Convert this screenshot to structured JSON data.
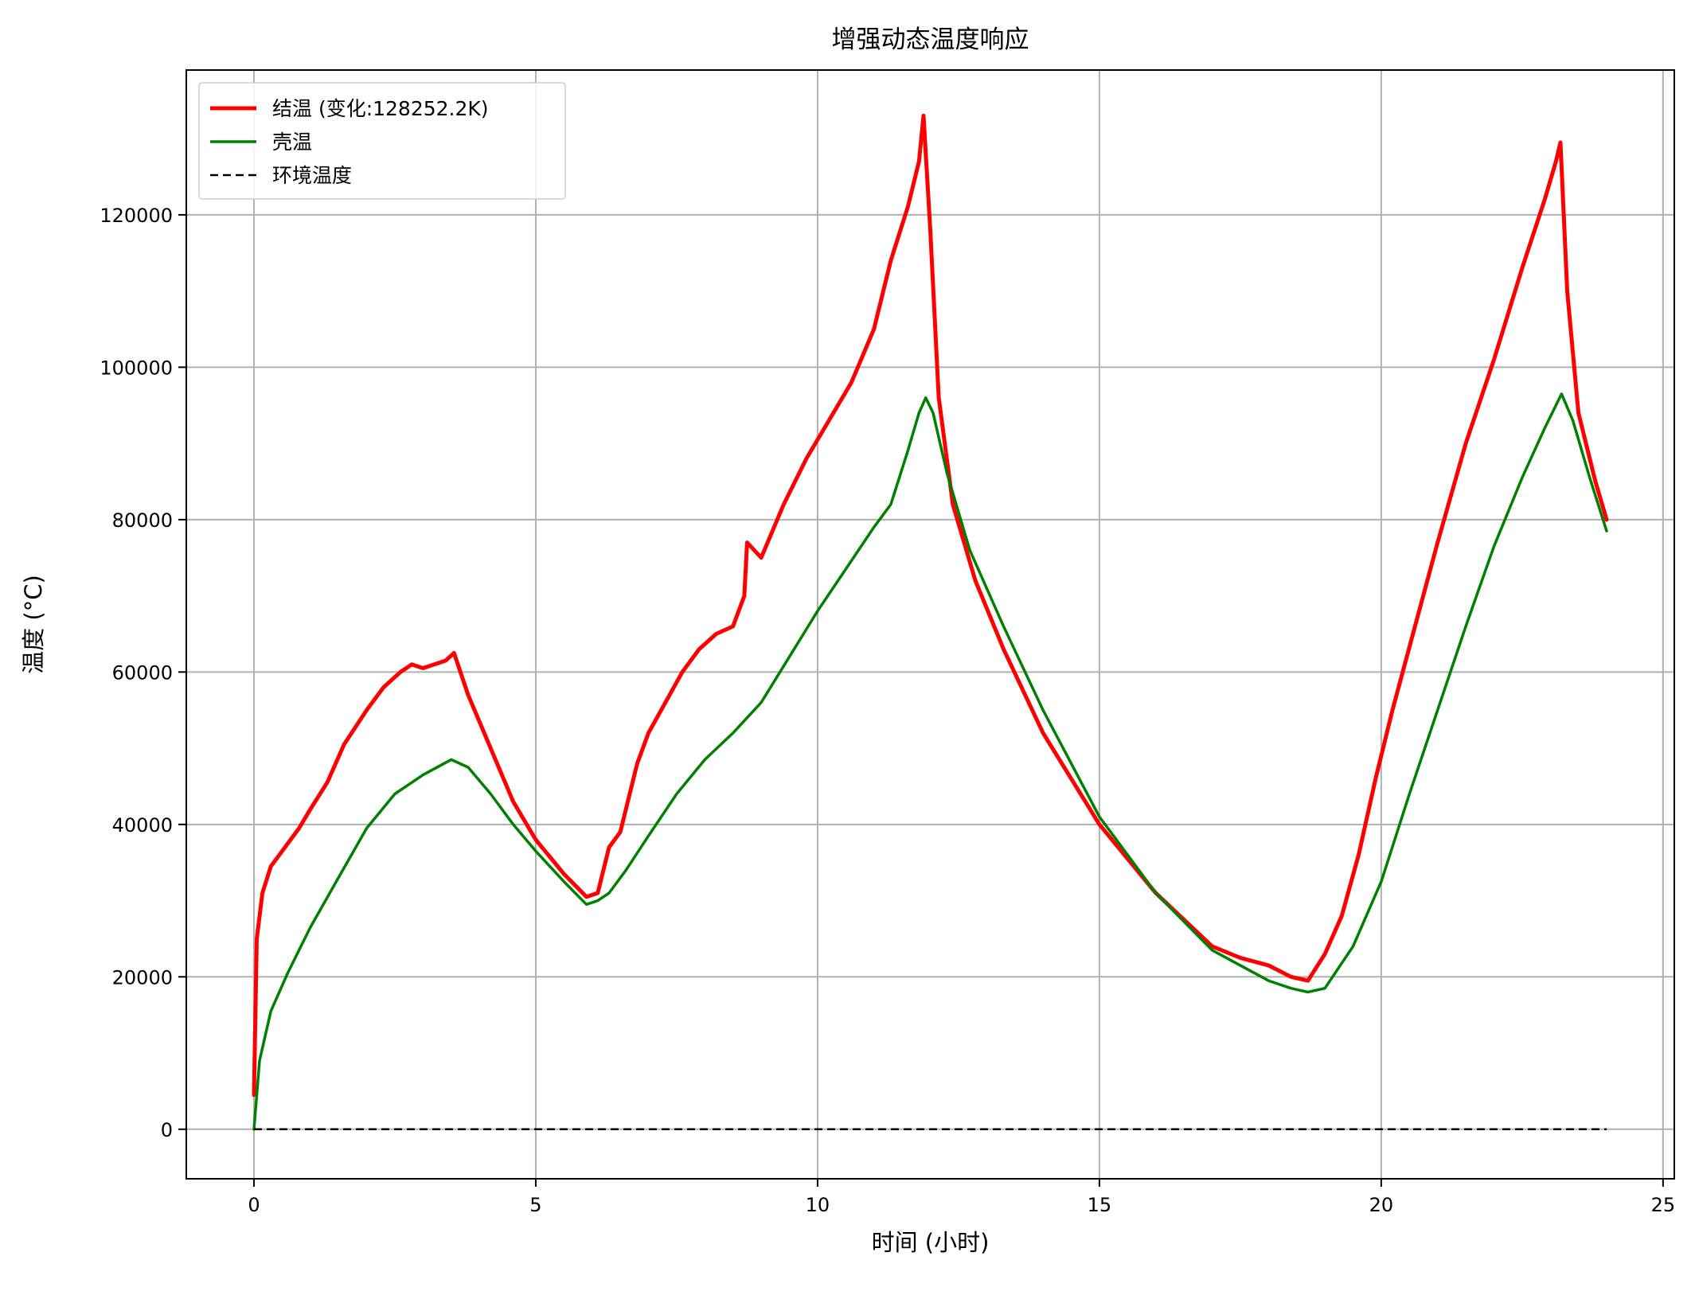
{
  "chart_data": {
    "type": "line",
    "title": "增强动态温度响应",
    "xlabel": "时间 (小时)",
    "ylabel": "温度 (°C)",
    "xlim": [
      -1.2,
      25.2
    ],
    "ylim": [
      -6500,
      139000
    ],
    "xticks": [
      0,
      5,
      10,
      15,
      20,
      25
    ],
    "yticks": [
      0,
      20000,
      40000,
      60000,
      80000,
      100000,
      120000
    ],
    "grid": true,
    "legend_position": "top-left",
    "series": [
      {
        "name": "结温 (变化:128252.2K)",
        "color": "#ff0000",
        "style": "solid",
        "width": "thick",
        "x": [
          0,
          0.05,
          0.15,
          0.3,
          0.5,
          0.8,
          1.0,
          1.3,
          1.6,
          2.0,
          2.3,
          2.6,
          2.8,
          3.0,
          3.2,
          3.4,
          3.55,
          3.8,
          4.2,
          4.6,
          5.0,
          5.5,
          5.9,
          6.1,
          6.3,
          6.5,
          6.8,
          7.0,
          7.3,
          7.6,
          7.9,
          8.2,
          8.5,
          8.7,
          8.75,
          9.0,
          9.4,
          9.8,
          10.2,
          10.6,
          11.0,
          11.3,
          11.6,
          11.8,
          11.88,
          12.0,
          12.15,
          12.4,
          12.8,
          13.3,
          14.0,
          15.0,
          16.0,
          17.0,
          17.5,
          18.0,
          18.4,
          18.7,
          19.0,
          19.3,
          19.6,
          19.9,
          20.2,
          20.6,
          21.0,
          21.5,
          22.0,
          22.5,
          22.9,
          23.1,
          23.18,
          23.3,
          23.5,
          23.8,
          24.0
        ],
        "values": [
          4500,
          25000,
          31000,
          34500,
          36500,
          39500,
          42000,
          45500,
          50500,
          55000,
          58000,
          60000,
          61000,
          60500,
          61000,
          61500,
          62500,
          57000,
          50000,
          43000,
          38000,
          33500,
          30500,
          31000,
          37000,
          39000,
          48000,
          52000,
          56000,
          60000,
          63000,
          65000,
          66000,
          70000,
          77000,
          75000,
          82000,
          88000,
          93000,
          98000,
          105000,
          114000,
          121000,
          127000,
          133000,
          118000,
          96000,
          82000,
          72000,
          63000,
          52000,
          40000,
          31000,
          24000,
          22500,
          21500,
          20000,
          19500,
          23000,
          28000,
          36000,
          46000,
          55000,
          66000,
          77000,
          90000,
          101000,
          113000,
          122000,
          127000,
          129500,
          110000,
          94000,
          85000,
          80000
        ]
      },
      {
        "name": "壳温",
        "color": "#008000",
        "style": "solid",
        "width": "normal",
        "x": [
          0,
          0.1,
          0.3,
          0.6,
          1.0,
          1.5,
          2.0,
          2.5,
          3.0,
          3.5,
          3.8,
          4.2,
          4.6,
          5.0,
          5.5,
          5.9,
          6.1,
          6.3,
          6.6,
          7.0,
          7.5,
          8.0,
          8.5,
          9.0,
          9.5,
          10.0,
          10.5,
          11.0,
          11.3,
          11.6,
          11.8,
          11.92,
          12.05,
          12.3,
          12.7,
          13.3,
          14.0,
          15.0,
          16.0,
          17.0,
          17.5,
          18.0,
          18.4,
          18.7,
          19.0,
          19.5,
          20.0,
          20.5,
          21.0,
          21.5,
          22.0,
          22.5,
          22.9,
          23.2,
          23.4,
          23.7,
          24.0
        ],
        "values": [
          0,
          9000,
          15500,
          20500,
          26500,
          33000,
          39500,
          44000,
          46500,
          48500,
          47500,
          44000,
          40000,
          36500,
          32500,
          29500,
          30000,
          31000,
          34000,
          38500,
          44000,
          48500,
          52000,
          56000,
          62000,
          68000,
          73500,
          79000,
          82000,
          89000,
          94000,
          96000,
          94000,
          86000,
          76000,
          66000,
          55000,
          41000,
          31000,
          23500,
          21500,
          19500,
          18500,
          18000,
          18500,
          24000,
          32500,
          44000,
          55000,
          66000,
          76500,
          85500,
          92000,
          96500,
          93000,
          85500,
          78500
        ]
      },
      {
        "name": "环境温度",
        "color": "#000000",
        "style": "dashed",
        "width": "thin",
        "x": [
          0,
          24
        ],
        "values": [
          0,
          0
        ]
      }
    ]
  }
}
